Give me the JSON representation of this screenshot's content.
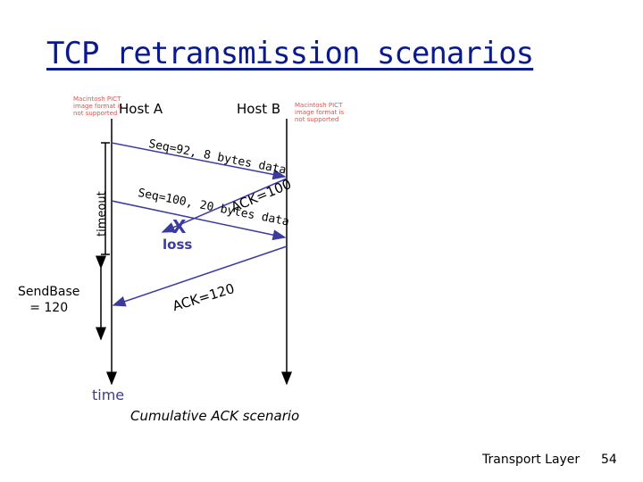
{
  "title": "TCP retransmission scenarios",
  "hosts": {
    "a": "Host A",
    "b": "Host B"
  },
  "image_placeholder": "Macintosh PICT image format is not supported",
  "messages": {
    "seg1": "Seq=92, 8 bytes data",
    "seg2": "Seq=100, 20 bytes data",
    "ack1": "ACK=100",
    "ack2": "ACK=120"
  },
  "labels": {
    "timeout": "timeout",
    "sendbase_line1": "SendBase",
    "sendbase_line2": "= 120",
    "loss_mark": "X",
    "loss": "loss",
    "time": "time"
  },
  "caption": "Cumulative ACK scenario",
  "footer": {
    "course": "Transport Layer",
    "page": "54"
  },
  "colors": {
    "title": "#0a1a8c",
    "arrow": "#3a3aa0",
    "placeholder": "#d9534f"
  }
}
